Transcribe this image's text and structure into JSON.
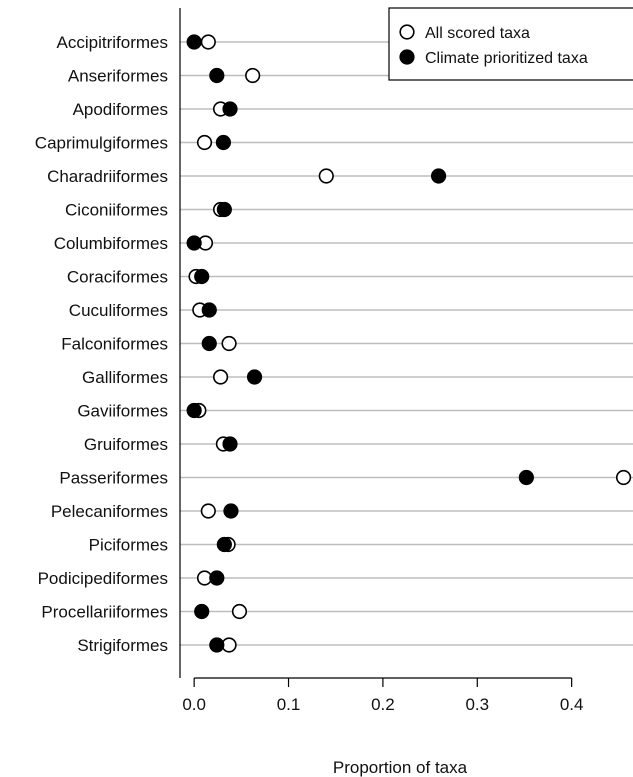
{
  "chart_data": {
    "type": "scatter",
    "title": "",
    "xlabel": "Proportion of taxa",
    "ylabel": "",
    "xlim": [
      -0.015,
      0.465
    ],
    "x_ticks": [
      "0.0",
      "0.1",
      "0.2",
      "0.3",
      "0.4"
    ],
    "x_tick_values": [
      0.0,
      0.1,
      0.2,
      0.3,
      0.4
    ],
    "grid": "horizontal",
    "legend_position": "top-right",
    "categories": [
      "Accipitriformes",
      "Anseriformes",
      "Apodiformes",
      "Caprimulgiformes",
      "Charadriiformes",
      "Ciconiiformes",
      "Columbiformes",
      "Coraciformes",
      "Cuculiformes",
      "Falconiformes",
      "Galliformes",
      "Gaviiformes",
      "Gruiformes",
      "Passeriformes",
      "Pelecaniformes",
      "Piciformes",
      "Podicipediformes",
      "Procellariiformes",
      "Strigiformes"
    ],
    "series": [
      {
        "name": "All scored taxa",
        "marker": "open-circle",
        "values": [
          0.015,
          0.062,
          0.028,
          0.011,
          0.14,
          0.028,
          0.012,
          0.002,
          0.006,
          0.037,
          0.028,
          0.005,
          0.031,
          0.455,
          0.015,
          0.036,
          0.011,
          0.048,
          0.037
        ]
      },
      {
        "name": "Climate prioritized taxa",
        "marker": "filled-circle",
        "values": [
          0.0,
          0.024,
          0.038,
          0.031,
          0.259,
          0.032,
          0.0,
          0.008,
          0.016,
          0.016,
          0.064,
          0.0,
          0.038,
          0.352,
          0.039,
          0.032,
          0.024,
          0.008,
          0.024
        ]
      }
    ],
    "colors": {
      "grid": "#bdbdbd",
      "axis": "#000000",
      "marker": "#000000"
    }
  }
}
